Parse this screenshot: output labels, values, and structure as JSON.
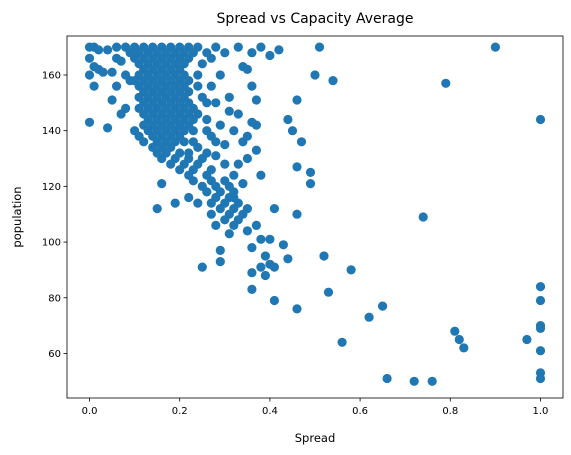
{
  "chart_data": {
    "type": "scatter",
    "title": "Spread vs Capacity Average",
    "xlabel": "Spread",
    "ylabel": "population",
    "xlim": [
      -0.05,
      1.05
    ],
    "ylim": [
      44.0,
      174.0
    ],
    "xticks": [
      0.0,
      0.2,
      0.4,
      0.6,
      0.8,
      1.0
    ],
    "xtick_labels": [
      "0.0",
      "0.2",
      "0.4",
      "0.6",
      "0.8",
      "1.0"
    ],
    "yticks": [
      60,
      80,
      100,
      120,
      140,
      160
    ],
    "ytick_labels": [
      "60",
      "80",
      "100",
      "120",
      "140",
      "160"
    ],
    "grid": false,
    "marker_color": "#1f77b4",
    "series": [
      {
        "points": [
          [
            0.0,
            170
          ],
          [
            0.01,
            170
          ],
          [
            0.02,
            169
          ],
          [
            0.0,
            166
          ],
          [
            0.01,
            163
          ],
          [
            0.0,
            160
          ],
          [
            0.02,
            162
          ],
          [
            0.01,
            156
          ],
          [
            0.0,
            143
          ],
          [
            0.04,
            141
          ],
          [
            0.03,
            161
          ],
          [
            0.05,
            161
          ],
          [
            0.06,
            166
          ],
          [
            0.06,
            156
          ],
          [
            0.05,
            151
          ],
          [
            0.07,
            165
          ],
          [
            0.08,
            160
          ],
          [
            0.07,
            146
          ],
          [
            0.09,
            158
          ],
          [
            0.08,
            148
          ],
          [
            0.04,
            169
          ],
          [
            0.06,
            170
          ],
          [
            0.08,
            170
          ],
          [
            0.1,
            170
          ],
          [
            0.12,
            170
          ],
          [
            0.14,
            170
          ],
          [
            0.16,
            170
          ],
          [
            0.18,
            170
          ],
          [
            0.2,
            170
          ],
          [
            0.22,
            170
          ],
          [
            0.24,
            170
          ],
          [
            0.09,
            168
          ],
          [
            0.11,
            168
          ],
          [
            0.13,
            168
          ],
          [
            0.15,
            168
          ],
          [
            0.17,
            168
          ],
          [
            0.19,
            168
          ],
          [
            0.21,
            168
          ],
          [
            0.23,
            168
          ],
          [
            0.1,
            166
          ],
          [
            0.12,
            166
          ],
          [
            0.14,
            166
          ],
          [
            0.16,
            166
          ],
          [
            0.18,
            166
          ],
          [
            0.2,
            166
          ],
          [
            0.22,
            166
          ],
          [
            0.11,
            164
          ],
          [
            0.13,
            164
          ],
          [
            0.15,
            164
          ],
          [
            0.17,
            164
          ],
          [
            0.19,
            164
          ],
          [
            0.21,
            164
          ],
          [
            0.12,
            162
          ],
          [
            0.14,
            162
          ],
          [
            0.16,
            162
          ],
          [
            0.18,
            162
          ],
          [
            0.2,
            162
          ],
          [
            0.11,
            160
          ],
          [
            0.13,
            160
          ],
          [
            0.15,
            160
          ],
          [
            0.17,
            160
          ],
          [
            0.19,
            160
          ],
          [
            0.21,
            160
          ],
          [
            0.1,
            158
          ],
          [
            0.12,
            158
          ],
          [
            0.14,
            158
          ],
          [
            0.16,
            158
          ],
          [
            0.18,
            158
          ],
          [
            0.2,
            158
          ],
          [
            0.22,
            158
          ],
          [
            0.11,
            156
          ],
          [
            0.13,
            156
          ],
          [
            0.15,
            156
          ],
          [
            0.17,
            156
          ],
          [
            0.19,
            156
          ],
          [
            0.21,
            156
          ],
          [
            0.12,
            154
          ],
          [
            0.14,
            154
          ],
          [
            0.16,
            154
          ],
          [
            0.18,
            154
          ],
          [
            0.2,
            154
          ],
          [
            0.22,
            154
          ],
          [
            0.11,
            152
          ],
          [
            0.13,
            152
          ],
          [
            0.15,
            152
          ],
          [
            0.17,
            152
          ],
          [
            0.19,
            152
          ],
          [
            0.21,
            152
          ],
          [
            0.12,
            150
          ],
          [
            0.14,
            150
          ],
          [
            0.16,
            150
          ],
          [
            0.18,
            150
          ],
          [
            0.2,
            150
          ],
          [
            0.22,
            150
          ],
          [
            0.11,
            148
          ],
          [
            0.13,
            148
          ],
          [
            0.15,
            148
          ],
          [
            0.17,
            148
          ],
          [
            0.19,
            148
          ],
          [
            0.21,
            148
          ],
          [
            0.23,
            148
          ],
          [
            0.12,
            146
          ],
          [
            0.14,
            146
          ],
          [
            0.16,
            146
          ],
          [
            0.18,
            146
          ],
          [
            0.2,
            146
          ],
          [
            0.22,
            146
          ],
          [
            0.24,
            146
          ],
          [
            0.13,
            144
          ],
          [
            0.15,
            144
          ],
          [
            0.17,
            144
          ],
          [
            0.19,
            144
          ],
          [
            0.21,
            144
          ],
          [
            0.23,
            144
          ],
          [
            0.12,
            142
          ],
          [
            0.14,
            142
          ],
          [
            0.16,
            142
          ],
          [
            0.18,
            142
          ],
          [
            0.2,
            142
          ],
          [
            0.22,
            142
          ],
          [
            0.1,
            140
          ],
          [
            0.13,
            140
          ],
          [
            0.15,
            140
          ],
          [
            0.17,
            140
          ],
          [
            0.19,
            140
          ],
          [
            0.21,
            140
          ],
          [
            0.23,
            140
          ],
          [
            0.11,
            138
          ],
          [
            0.14,
            138
          ],
          [
            0.16,
            138
          ],
          [
            0.18,
            138
          ],
          [
            0.2,
            138
          ],
          [
            0.12,
            136
          ],
          [
            0.15,
            136
          ],
          [
            0.17,
            136
          ],
          [
            0.19,
            136
          ],
          [
            0.21,
            136
          ],
          [
            0.14,
            134
          ],
          [
            0.16,
            134
          ],
          [
            0.18,
            134
          ],
          [
            0.24,
            134
          ],
          [
            0.15,
            132
          ],
          [
            0.17,
            132
          ],
          [
            0.2,
            132
          ],
          [
            0.26,
            132
          ],
          [
            0.16,
            130
          ],
          [
            0.19,
            130
          ],
          [
            0.22,
            130
          ],
          [
            0.18,
            128
          ],
          [
            0.21,
            128
          ],
          [
            0.24,
            128
          ],
          [
            0.2,
            126
          ],
          [
            0.23,
            126
          ],
          [
            0.27,
            126
          ],
          [
            0.22,
            124
          ],
          [
            0.26,
            124
          ],
          [
            0.23,
            122
          ],
          [
            0.27,
            122
          ],
          [
            0.3,
            122
          ],
          [
            0.16,
            121
          ],
          [
            0.25,
            120
          ],
          [
            0.28,
            120
          ],
          [
            0.31,
            120
          ],
          [
            0.26,
            118
          ],
          [
            0.29,
            118
          ],
          [
            0.32,
            118
          ],
          [
            0.22,
            116
          ],
          [
            0.28,
            116
          ],
          [
            0.31,
            116
          ],
          [
            0.24,
            114
          ],
          [
            0.27,
            114
          ],
          [
            0.3,
            114
          ],
          [
            0.33,
            114
          ],
          [
            0.19,
            114
          ],
          [
            0.29,
            112
          ],
          [
            0.32,
            112
          ],
          [
            0.35,
            112
          ],
          [
            0.15,
            112
          ],
          [
            0.31,
            110
          ],
          [
            0.34,
            110
          ],
          [
            0.27,
            110
          ],
          [
            0.3,
            108
          ],
          [
            0.33,
            108
          ],
          [
            0.28,
            106
          ],
          [
            0.32,
            106
          ],
          [
            0.37,
            106
          ],
          [
            0.31,
            103
          ],
          [
            0.35,
            104
          ],
          [
            0.41,
            112
          ],
          [
            0.4,
            101
          ],
          [
            0.38,
            101
          ],
          [
            0.36,
            98
          ],
          [
            0.39,
            95
          ],
          [
            0.4,
            92
          ],
          [
            0.41,
            91
          ],
          [
            0.43,
            99
          ],
          [
            0.44,
            94
          ],
          [
            0.38,
            91
          ],
          [
            0.36,
            89
          ],
          [
            0.39,
            88
          ],
          [
            0.36,
            83
          ],
          [
            0.29,
            97
          ],
          [
            0.29,
            93
          ],
          [
            0.25,
            91
          ],
          [
            0.41,
            79
          ],
          [
            0.46,
            76
          ],
          [
            0.52,
            95
          ],
          [
            0.53,
            82
          ],
          [
            0.56,
            64
          ],
          [
            0.58,
            90
          ],
          [
            0.62,
            73
          ],
          [
            0.65,
            77
          ],
          [
            0.66,
            51
          ],
          [
            0.72,
            50
          ],
          [
            0.76,
            50
          ],
          [
            0.74,
            109
          ],
          [
            0.81,
            68
          ],
          [
            0.82,
            65
          ],
          [
            0.83,
            62
          ],
          [
            0.97,
            65
          ],
          [
            1.0,
            84
          ],
          [
            1.0,
            79
          ],
          [
            1.0,
            70
          ],
          [
            1.0,
            69
          ],
          [
            1.0,
            61
          ],
          [
            1.0,
            53
          ],
          [
            1.0,
            51
          ],
          [
            1.0,
            144
          ],
          [
            0.79,
            157
          ],
          [
            0.9,
            170
          ],
          [
            0.51,
            170
          ],
          [
            0.5,
            160
          ],
          [
            0.54,
            158
          ],
          [
            0.46,
            151
          ],
          [
            0.47,
            136
          ],
          [
            0.46,
            127
          ],
          [
            0.49,
            125
          ],
          [
            0.49,
            121
          ],
          [
            0.46,
            110
          ],
          [
            0.45,
            140
          ],
          [
            0.44,
            144
          ],
          [
            0.42,
            169
          ],
          [
            0.4,
            167
          ],
          [
            0.38,
            170
          ],
          [
            0.36,
            168
          ],
          [
            0.35,
            162
          ],
          [
            0.36,
            156
          ],
          [
            0.37,
            151
          ],
          [
            0.36,
            143
          ],
          [
            0.37,
            133
          ],
          [
            0.35,
            130
          ],
          [
            0.33,
            128
          ],
          [
            0.34,
            136
          ],
          [
            0.32,
            140
          ],
          [
            0.33,
            146
          ],
          [
            0.31,
            152
          ],
          [
            0.34,
            163
          ],
          [
            0.33,
            170
          ],
          [
            0.3,
            168
          ],
          [
            0.28,
            170
          ],
          [
            0.27,
            166
          ],
          [
            0.29,
            160
          ],
          [
            0.27,
            156
          ],
          [
            0.28,
            150
          ],
          [
            0.26,
            144
          ],
          [
            0.27,
            138
          ],
          [
            0.25,
            130
          ],
          [
            0.24,
            160
          ],
          [
            0.25,
            152
          ],
          [
            0.29,
            142
          ],
          [
            0.3,
            135
          ],
          [
            0.32,
            124
          ],
          [
            0.31,
            147
          ],
          [
            0.26,
            168
          ],
          [
            0.25,
            164
          ],
          [
            0.24,
            156
          ],
          [
            0.26,
            150
          ],
          [
            0.23,
            136
          ],
          [
            0.22,
            132
          ],
          [
            0.26,
            140
          ],
          [
            0.28,
            136
          ],
          [
            0.3,
            128
          ],
          [
            0.28,
            131
          ],
          [
            0.32,
            116
          ],
          [
            0.34,
            121
          ],
          [
            0.35,
            138
          ],
          [
            0.38,
            124
          ],
          [
            0.37,
            142
          ]
        ]
      }
    ]
  }
}
